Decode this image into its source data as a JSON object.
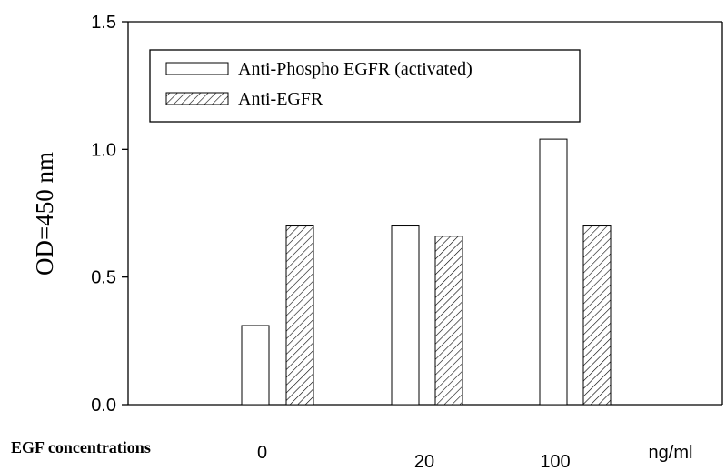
{
  "chart_data": {
    "type": "bar",
    "ylabel": "OD=450 nm",
    "x_title": "EGF concentrations",
    "x_unit": "ng/ml",
    "categories": [
      "0",
      "20",
      "100"
    ],
    "series": [
      {
        "name": "Anti-Phospho EGFR (activated)",
        "fill": "open",
        "values": [
          0.31,
          0.7,
          1.04
        ]
      },
      {
        "name": "Anti-EGFR",
        "fill": "hatched",
        "values": [
          0.7,
          0.66,
          0.7
        ]
      }
    ],
    "ylim": [
      0,
      1.5
    ],
    "yticks": [
      "0.0",
      "0.5",
      "1.0",
      "1.5"
    ],
    "ytick_values": [
      0,
      0.5,
      1.0,
      1.5
    ],
    "grid": false,
    "legend_position": "top-left"
  }
}
